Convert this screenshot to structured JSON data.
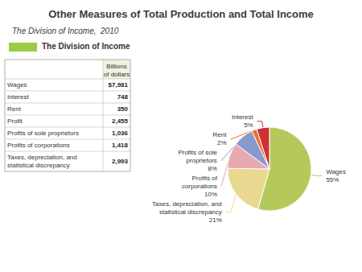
{
  "chart_data": {
    "type": "pie",
    "title": "Other Measures of Total Production and Total Income",
    "subtitle": "The Division of Income,  2010",
    "categories": [
      "Wages",
      "Taxes, depreciation, and\nstatistical discrepancy",
      "Profits of\ncorporations",
      "Profits of sole\nproprietors",
      "Rent",
      "Interest"
    ],
    "values": [
      55,
      21,
      10,
      8,
      2,
      5
    ],
    "value_labels": [
      "55%",
      "21%",
      "10%",
      "8%",
      "2%",
      "5%"
    ],
    "colors": [
      "#b5c95a",
      "#e8d890",
      "#e8a8b0",
      "#8899cc",
      "#e87030",
      "#cc3333"
    ],
    "data_labels": true,
    "annotations": [
      {
        "text": "The Division of Income",
        "color": "#99cc44"
      }
    ],
    "table": {
      "header": "Billions\nof dollars",
      "rows": [
        {
          "label": "Wages",
          "value": "$7,981"
        },
        {
          "label": "Interest",
          "value": "748"
        },
        {
          "label": "Rent",
          "value": "350"
        },
        {
          "label": "Profit",
          "value": "2,455"
        },
        {
          "label": "Profits of sole proprietors",
          "value": "1,036"
        },
        {
          "label": "Profits of corporations",
          "value": "1,418"
        },
        {
          "label": "Taxes, depreciation, and\nstatistical discrepancy",
          "value": "2,993"
        }
      ]
    }
  }
}
